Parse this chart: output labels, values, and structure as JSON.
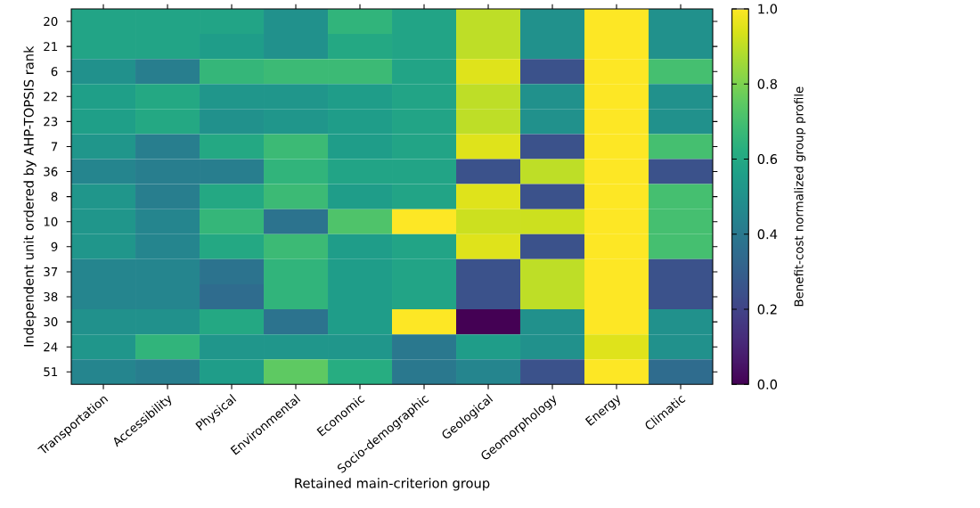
{
  "chart_data": {
    "type": "heatmap",
    "xlabel": "Retained main-criterion group",
    "ylabel": "Independent unit ordered by AHP-TOPSIS rank",
    "clabel": "Benefit-cost normalized group profile",
    "categories": [
      "Transportation",
      "Accessibility",
      "Physical",
      "Environmental",
      "Economic",
      "Socio-demographic",
      "Geological",
      "Geomorphology",
      "Energy",
      "Climatic"
    ],
    "y_categories": [
      "20",
      "21",
      "6",
      "22",
      "23",
      "7",
      "36",
      "8",
      "10",
      "9",
      "37",
      "38",
      "30",
      "24",
      "51"
    ],
    "cells": [
      [
        0.58,
        0.58,
        0.58,
        0.5,
        0.65,
        0.58,
        0.9,
        0.5,
        1.0,
        0.5
      ],
      [
        0.58,
        0.58,
        0.55,
        0.5,
        0.6,
        0.58,
        0.9,
        0.5,
        1.0,
        0.5
      ],
      [
        0.5,
        0.42,
        0.66,
        0.68,
        0.68,
        0.58,
        0.95,
        0.25,
        1.0,
        0.7
      ],
      [
        0.56,
        0.6,
        0.52,
        0.52,
        0.55,
        0.58,
        0.9,
        0.5,
        1.0,
        0.5
      ],
      [
        0.56,
        0.6,
        0.5,
        0.52,
        0.55,
        0.58,
        0.9,
        0.5,
        1.0,
        0.5
      ],
      [
        0.52,
        0.42,
        0.6,
        0.68,
        0.55,
        0.58,
        0.95,
        0.25,
        1.0,
        0.7
      ],
      [
        0.45,
        0.42,
        0.42,
        0.65,
        0.58,
        0.58,
        0.25,
        0.9,
        1.0,
        0.25
      ],
      [
        0.52,
        0.42,
        0.6,
        0.68,
        0.55,
        0.58,
        0.95,
        0.25,
        1.0,
        0.7
      ],
      [
        0.52,
        0.45,
        0.66,
        0.38,
        0.72,
        1.0,
        0.92,
        0.92,
        1.0,
        0.7
      ],
      [
        0.52,
        0.45,
        0.6,
        0.68,
        0.55,
        0.58,
        0.95,
        0.25,
        1.0,
        0.7
      ],
      [
        0.45,
        0.45,
        0.38,
        0.65,
        0.55,
        0.58,
        0.25,
        0.9,
        1.0,
        0.25
      ],
      [
        0.45,
        0.45,
        0.35,
        0.65,
        0.55,
        0.58,
        0.25,
        0.9,
        1.0,
        0.25
      ],
      [
        0.5,
        0.5,
        0.6,
        0.38,
        0.55,
        1.0,
        0.0,
        0.5,
        1.0,
        0.5
      ],
      [
        0.52,
        0.65,
        0.52,
        0.52,
        0.52,
        0.4,
        0.55,
        0.5,
        0.95,
        0.5
      ],
      [
        0.45,
        0.42,
        0.55,
        0.75,
        0.62,
        0.4,
        0.45,
        0.25,
        1.0,
        0.35
      ]
    ],
    "clim": [
      0,
      1
    ],
    "cticks": [
      {
        "value": 0,
        "label": "0.0"
      },
      {
        "value": 0.2,
        "label": "0.2"
      },
      {
        "value": 0.4,
        "label": "0.4"
      },
      {
        "value": 0.6,
        "label": "0.6"
      },
      {
        "value": 0.8,
        "label": "0.8"
      },
      {
        "value": 1,
        "label": "1.0"
      }
    ]
  }
}
